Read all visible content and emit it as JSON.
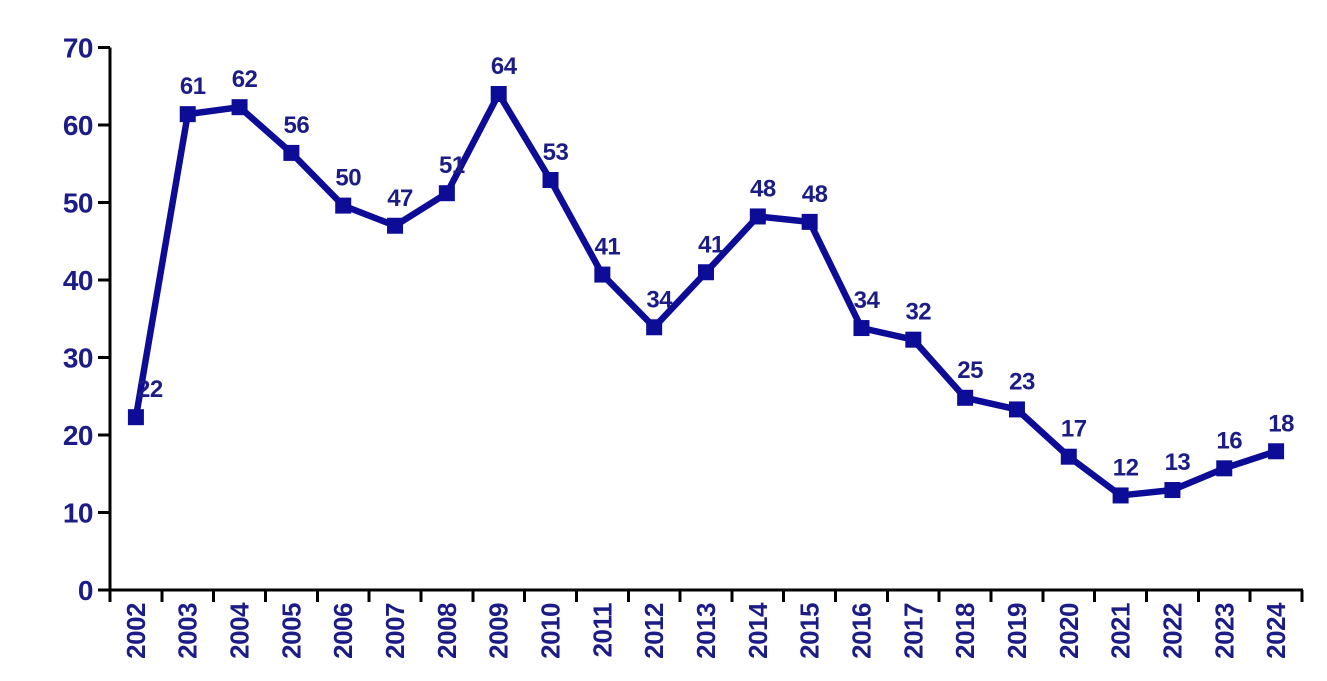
{
  "chart_data": {
    "type": "line",
    "title": "",
    "xlabel": "",
    "ylabel": "",
    "categories": [
      "2002",
      "2003",
      "2004",
      "2005",
      "2006",
      "2007",
      "2008",
      "2009",
      "2010",
      "2011",
      "2012",
      "2013",
      "2014",
      "2015",
      "2016",
      "2017",
      "2018",
      "2019",
      "2020",
      "2021",
      "2022",
      "2023",
      "2024"
    ],
    "values": [
      22,
      61,
      62,
      56,
      50,
      47,
      51,
      64,
      53,
      41,
      34,
      41,
      48,
      48,
      34,
      32,
      25,
      23,
      17,
      12,
      13,
      16,
      18
    ],
    "marker_values": [
      22.3,
      61.4,
      62.3,
      56.4,
      49.6,
      47.0,
      51.2,
      64.0,
      52.9,
      40.7,
      33.9,
      41.0,
      48.2,
      47.5,
      33.8,
      32.3,
      24.8,
      23.3,
      17.2,
      12.2,
      12.9,
      15.7,
      17.9
    ],
    "data_labels": [
      "22",
      "61",
      "62",
      "56",
      "50",
      "47",
      "51",
      "64",
      "53",
      "41",
      "34",
      "41",
      "48",
      "48",
      "34",
      "32",
      "25",
      "23",
      "17",
      "12",
      "13",
      "16",
      "18"
    ],
    "yticks": [
      0,
      10,
      20,
      30,
      40,
      50,
      60,
      70
    ],
    "ylim": [
      0,
      70
    ],
    "grid": false,
    "legend": null,
    "marker": "square",
    "line_color": "#0C0C96",
    "marker_color": "#0C0C96",
    "label_color": "#1C1C87",
    "axis_color": "#000000",
    "background": "#FFFFFF"
  }
}
